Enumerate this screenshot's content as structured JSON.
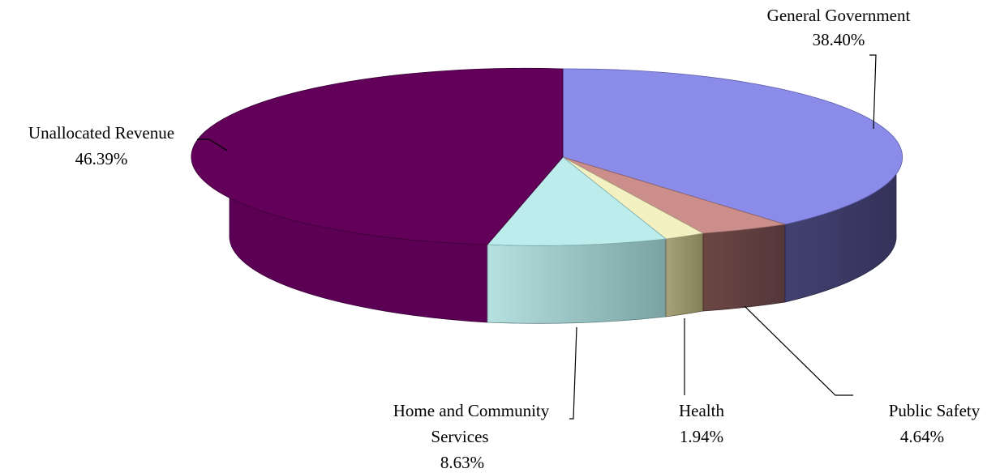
{
  "chart_data": {
    "type": "pie",
    "title": "",
    "style": "3d-tilted",
    "slices": [
      {
        "name": "General Government",
        "value": 38.4,
        "label": "38.40%",
        "color": "#8b8bea",
        "side_color": "#3d3b66"
      },
      {
        "name": "Public Safety",
        "value": 4.64,
        "label": "4.64%",
        "color": "#cc8e8a",
        "side_color": "#5e3f3b"
      },
      {
        "name": "Health",
        "value": 1.94,
        "label": "1.94%",
        "color": "#f3f0c2",
        "side_color": "#8f8a63"
      },
      {
        "name": "Home and Community Services",
        "value": 8.63,
        "label": "8.63%",
        "color": "#bdecec",
        "side_color": "#86b0b0"
      },
      {
        "name": "Unallocated Revenue",
        "value": 46.39,
        "label": "46.39%",
        "color": "#62005a",
        "side_color": "#5c0055"
      }
    ]
  },
  "labels": {
    "general_government": {
      "name": "General Government",
      "value": "38.40%"
    },
    "public_safety": {
      "name": "Public Safety",
      "value": "4.64%"
    },
    "health": {
      "name": "Health",
      "value": "1.94%"
    },
    "home_community": {
      "name_line1": "Home and Community",
      "name_line2": "Services",
      "value": "8.63%"
    },
    "unallocated": {
      "name": "Unallocated Revenue",
      "value": "46.39%"
    }
  }
}
